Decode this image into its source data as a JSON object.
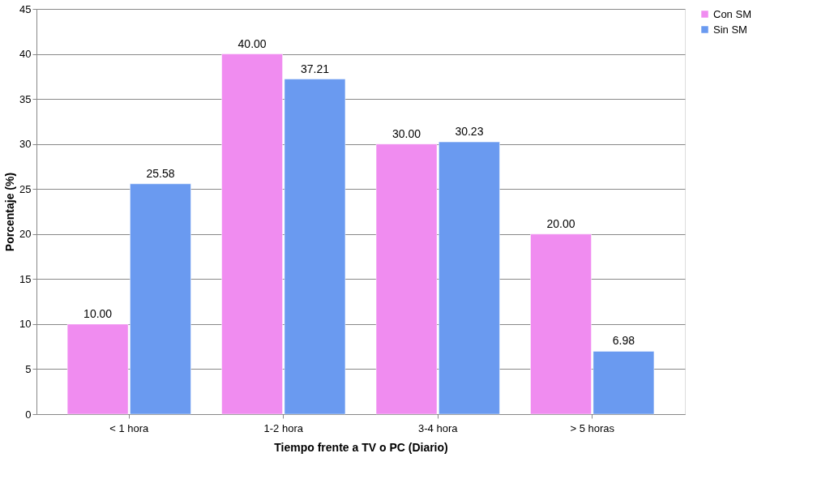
{
  "chart_data": {
    "type": "bar",
    "xlabel": "Tiempo frente a TV o PC (Diario)",
    "ylabel": "Porcentaje (%)",
    "categories": [
      "< 1 hora",
      "1-2 hora",
      "3-4 hora",
      "> 5 horas"
    ],
    "series": [
      {
        "name": "Con SM",
        "color": "#f08cf0",
        "values": [
          10,
          40,
          30,
          20
        ],
        "value_labels": [
          "10.00",
          "40.00",
          "30.00",
          "20.00"
        ]
      },
      {
        "name": "Sin SM",
        "color": "#6a9af0",
        "values": [
          25.58,
          37.21,
          30.23,
          6.98
        ],
        "value_labels": [
          "25.58",
          "37.21",
          "30.23",
          "6.98"
        ]
      }
    ],
    "ylim": [
      0,
      45
    ],
    "yticks": [
      0,
      5,
      10,
      15,
      20,
      25,
      30,
      35,
      40,
      45
    ],
    "grid": "y",
    "legend": "right"
  }
}
